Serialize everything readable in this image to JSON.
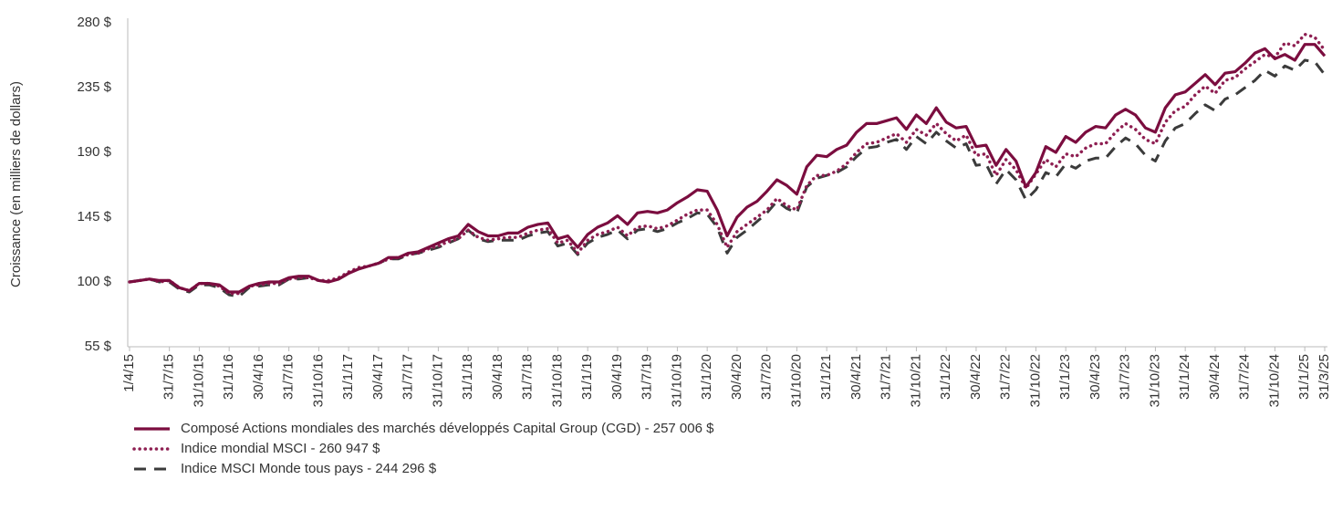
{
  "chart_data": {
    "type": "line",
    "ylabel": "Croissance (en milliers de dollars)",
    "ylim": [
      55,
      280
    ],
    "yticks": [
      {
        "value": 55,
        "label": "55 $"
      },
      {
        "value": 100,
        "label": "100 $"
      },
      {
        "value": 145,
        "label": "145 $"
      },
      {
        "value": 190,
        "label": "190 $"
      },
      {
        "value": 235,
        "label": "235 $"
      },
      {
        "value": 280,
        "label": "280 $"
      }
    ],
    "categories": [
      "1/4/15",
      null,
      null,
      null,
      "31/7/15",
      null,
      null,
      "31/10/15",
      null,
      null,
      "31/1/16",
      null,
      null,
      "30/4/16",
      null,
      null,
      "31/7/16",
      null,
      null,
      "31/10/16",
      null,
      null,
      "31/1/17",
      null,
      null,
      "30/4/17",
      null,
      null,
      "31/7/17",
      null,
      null,
      "31/10/17",
      null,
      null,
      "31/1/18",
      null,
      null,
      "30/4/18",
      null,
      null,
      "31/7/18",
      null,
      null,
      "31/10/18",
      null,
      null,
      "31/1/19",
      null,
      null,
      "30/4/19",
      null,
      null,
      "31/7/19",
      null,
      null,
      "31/10/19",
      null,
      null,
      "31/1/20",
      null,
      null,
      "30/4/20",
      null,
      null,
      "31/7/20",
      null,
      null,
      "31/10/20",
      null,
      null,
      "31/1/21",
      null,
      null,
      "30/4/21",
      null,
      null,
      "31/7/21",
      null,
      null,
      "31/10/21",
      null,
      null,
      "31/1/22",
      null,
      null,
      "30/4/22",
      null,
      null,
      "31/7/22",
      null,
      null,
      "31/10/22",
      null,
      null,
      "31/1/23",
      null,
      null,
      "30/4/23",
      null,
      null,
      "31/7/23",
      null,
      null,
      "31/10/23",
      null,
      null,
      "31/1/24",
      null,
      null,
      "30/4/24",
      null,
      null,
      "31/7/24",
      null,
      null,
      "31/10/24",
      null,
      null,
      "31/1/25",
      null,
      "31/3/25"
    ],
    "series": [
      {
        "name": "Composé Actions mondiales des marchés développés Capital Group (CGD) - 257 006 $",
        "color": "#7b0d3f",
        "style": "solid",
        "values": [
          100,
          101,
          102,
          101,
          101,
          96,
          94,
          99,
          99,
          98,
          93,
          93,
          97,
          99,
          100,
          100,
          103,
          104,
          104,
          101,
          100,
          102,
          106,
          109,
          111,
          113,
          117,
          117,
          120,
          121,
          124,
          127,
          130,
          132,
          140,
          135,
          132,
          132,
          134,
          134,
          138,
          140,
          141,
          130,
          132,
          124,
          133,
          138,
          141,
          146,
          140,
          148,
          149,
          148,
          150,
          155,
          159,
          164,
          163,
          150,
          132,
          145,
          152,
          156,
          163,
          171,
          167,
          161,
          180,
          188,
          187,
          192,
          195,
          204,
          210,
          210,
          212,
          214,
          206,
          216,
          210,
          221,
          211,
          207,
          208,
          194,
          195,
          181,
          192,
          184,
          166,
          176,
          194,
          190,
          201,
          197,
          204,
          208,
          207,
          216,
          220,
          216,
          207,
          204,
          221,
          230,
          232,
          238,
          244,
          237,
          245,
          246,
          252,
          259,
          262,
          255,
          258,
          254,
          265,
          265,
          257
        ]
      },
      {
        "name": "Indice mondial MSCI - 260 947 $",
        "color": "#8e1f52",
        "style": "dotted",
        "values": [
          100,
          101,
          102,
          100,
          101,
          96,
          94,
          99,
          99,
          97,
          92,
          92,
          97,
          98,
          99,
          99,
          102,
          103,
          103,
          101,
          101,
          103,
          107,
          110,
          111,
          113,
          116,
          117,
          119,
          120,
          123,
          125,
          128,
          130,
          136,
          131,
          129,
          130,
          131,
          131,
          134,
          136,
          137,
          127,
          129,
          120,
          129,
          133,
          135,
          138,
          132,
          138,
          139,
          137,
          139,
          143,
          147,
          150,
          150,
          140,
          124,
          135,
          140,
          145,
          150,
          158,
          153,
          150,
          167,
          174,
          174,
          177,
          182,
          190,
          196,
          197,
          200,
          203,
          197,
          206,
          202,
          210,
          203,
          198,
          202,
          188,
          189,
          174,
          185,
          178,
          165,
          175,
          185,
          180,
          189,
          187,
          193,
          196,
          196,
          204,
          210,
          206,
          199,
          196,
          211,
          219,
          222,
          230,
          236,
          231,
          240,
          242,
          248,
          253,
          258,
          256,
          266,
          264,
          272,
          270,
          261
        ]
      },
      {
        "name": "Indice MSCI Monde tous pays - 244 296 $",
        "color": "#3b3b3b",
        "style": "dashed",
        "values": [
          100,
          101,
          102,
          100,
          100,
          95,
          93,
          98,
          98,
          96,
          91,
          90,
          96,
          97,
          98,
          98,
          102,
          102,
          103,
          101,
          100,
          102,
          106,
          109,
          111,
          113,
          116,
          116,
          119,
          120,
          122,
          124,
          127,
          130,
          136,
          130,
          128,
          129,
          129,
          129,
          132,
          134,
          135,
          125,
          127,
          119,
          127,
          131,
          133,
          136,
          130,
          136,
          137,
          135,
          137,
          141,
          144,
          148,
          147,
          138,
          120,
          131,
          136,
          142,
          148,
          156,
          151,
          148,
          166,
          172,
          174,
          176,
          180,
          187,
          193,
          194,
          197,
          199,
          192,
          201,
          196,
          204,
          198,
          193,
          196,
          181,
          182,
          168,
          178,
          171,
          157,
          164,
          176,
          173,
          182,
          179,
          184,
          186,
          186,
          194,
          200,
          196,
          188,
          184,
          198,
          207,
          210,
          217,
          223,
          219,
          227,
          230,
          235,
          240,
          247,
          243,
          250,
          247,
          254,
          253,
          244
        ]
      }
    ]
  }
}
